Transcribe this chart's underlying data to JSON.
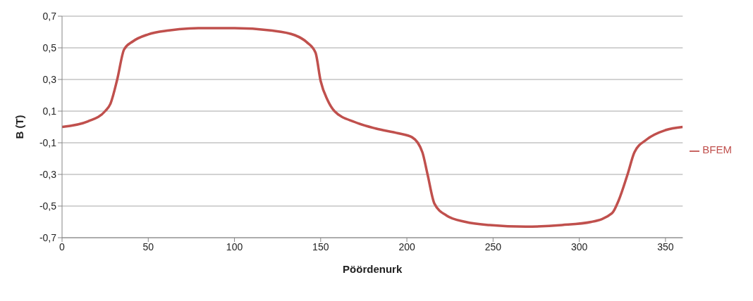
{
  "chart_data": {
    "type": "line",
    "xlabel": "Pöördenurk",
    "ylabel": "B (T)",
    "xlim": [
      0,
      360
    ],
    "xticks": [
      0,
      50,
      100,
      150,
      200,
      250,
      300,
      350
    ],
    "ylim": [
      -0.7,
      0.7
    ],
    "yticks": [
      {
        "value": -0.7,
        "label": "-0,7"
      },
      {
        "value": -0.5,
        "label": "-0,5"
      },
      {
        "value": -0.3,
        "label": "-0,3"
      },
      {
        "value": -0.1,
        "label": "-0,1"
      },
      {
        "value": 0.1,
        "label": "0,1"
      },
      {
        "value": 0.3,
        "label": "0,3"
      },
      {
        "value": 0.5,
        "label": "0,5"
      },
      {
        "value": 0.7,
        "label": "0,7"
      }
    ],
    "grid": "y",
    "legend": "right",
    "marker": "none",
    "line_style": "solid",
    "x": [
      0,
      15,
      25,
      28,
      32,
      36,
      41,
      50,
      62,
      79,
      100,
      121,
      135,
      142,
      147,
      150,
      154,
      158,
      170,
      182,
      195,
      203,
      209,
      212,
      216,
      223,
      234,
      248,
      269,
      290,
      307,
      319,
      323,
      328,
      332,
      339,
      350,
      360
    ],
    "series": [
      {
        "name": "BFEM",
        "color": "#c0504d",
        "values": [
          0,
          0.035,
          0.1,
          0.145,
          0.3,
          0.49,
          0.54,
          0.585,
          0.61,
          0.625,
          0.625,
          0.61,
          0.58,
          0.535,
          0.47,
          0.29,
          0.17,
          0.1,
          0.03,
          -0.01,
          -0.04,
          -0.065,
          -0.16,
          -0.3,
          -0.485,
          -0.56,
          -0.6,
          -0.62,
          -0.63,
          -0.62,
          -0.6,
          -0.545,
          -0.46,
          -0.3,
          -0.16,
          -0.08,
          -0.02,
          0
        ]
      }
    ]
  }
}
